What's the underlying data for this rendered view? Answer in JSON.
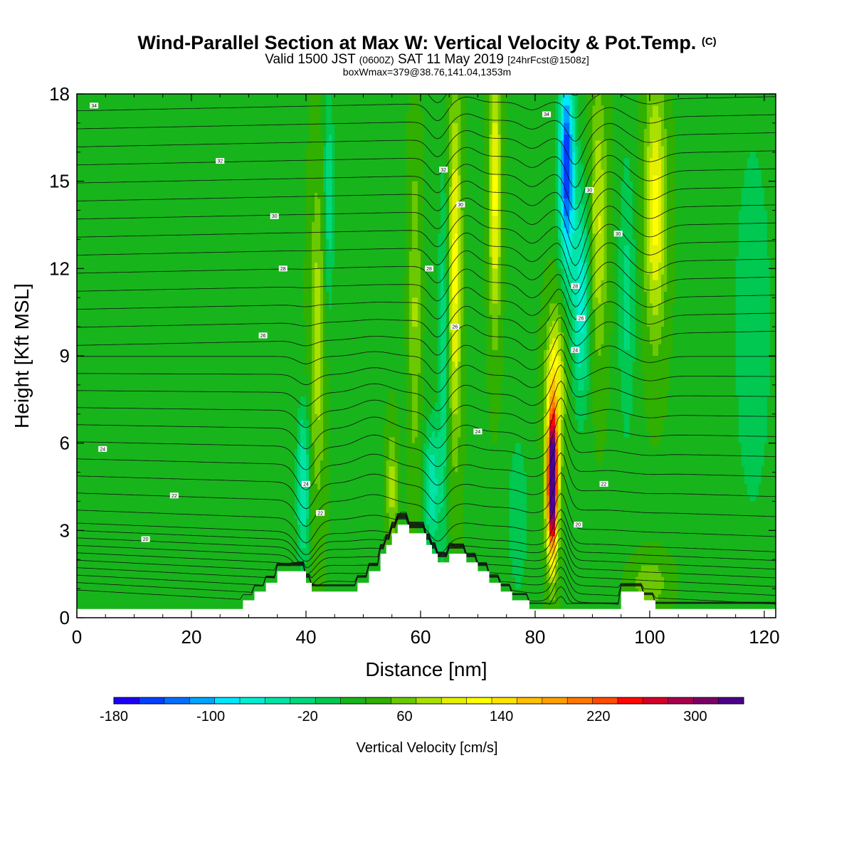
{
  "title": {
    "main": "Wind-Parallel Section at Max W: Vertical Velocity & Pot.Temp.",
    "copyright": "(C)",
    "valid_prefix": "Valid 1500 JST",
    "valid_utc": "(0600Z)",
    "valid_date": "SAT 11 May 2019",
    "forecast": "[24hrFcst@1508z]",
    "box_info": "boxWmax=379@38.76,141.04,1353m"
  },
  "chart_data": {
    "type": "heatmap",
    "xlabel": "Distance [nm]",
    "ylabel": "Height [Kft MSL]",
    "xlim": [
      0,
      122
    ],
    "ylim": [
      0,
      18
    ],
    "x_ticks": [
      0,
      20,
      40,
      60,
      80,
      100,
      120
    ],
    "y_ticks": [
      0,
      3,
      6,
      9,
      12,
      15,
      18
    ],
    "colorbar": {
      "title": "Vertical Velocity [cm/s]",
      "min": -180,
      "max": 340,
      "step": 20,
      "tick_labels": [
        "-180",
        "-100",
        "-20",
        "60",
        "140",
        "220",
        "300"
      ],
      "colors": [
        "#1d00f8",
        "#0040ff",
        "#0070ff",
        "#00a4ff",
        "#00e6ff",
        "#00eed2",
        "#00e4a8",
        "#00d87c",
        "#00c850",
        "#18b41c",
        "#30b000",
        "#6cc800",
        "#a8e000",
        "#e4f000",
        "#ffff00",
        "#ffe400",
        "#ffc000",
        "#ffa000",
        "#ff7800",
        "#ff4c00",
        "#ff0800",
        "#d20028",
        "#a8004c",
        "#7c0068",
        "#4c008c"
      ]
    },
    "terrain_kft": [
      [
        0,
        0.3
      ],
      [
        29,
        0.3
      ],
      [
        29,
        0.6
      ],
      [
        31,
        0.6
      ],
      [
        31,
        0.9
      ],
      [
        33,
        0.9
      ],
      [
        33,
        1.2
      ],
      [
        35,
        1.2
      ],
      [
        35,
        1.6
      ],
      [
        40,
        1.6
      ],
      [
        40,
        1.2
      ],
      [
        41,
        1.2
      ],
      [
        41,
        0.9
      ],
      [
        49,
        0.9
      ],
      [
        49,
        1.2
      ],
      [
        51,
        1.2
      ],
      [
        51,
        1.6
      ],
      [
        53,
        1.6
      ],
      [
        53,
        2.2
      ],
      [
        54,
        2.2
      ],
      [
        54,
        2.5
      ],
      [
        55,
        2.5
      ],
      [
        55,
        2.9
      ],
      [
        56,
        2.9
      ],
      [
        56,
        3.2
      ],
      [
        58,
        3.2
      ],
      [
        58,
        2.9
      ],
      [
        61,
        2.9
      ],
      [
        61,
        2.5
      ],
      [
        62,
        2.5
      ],
      [
        62,
        2.2
      ],
      [
        63,
        2.2
      ],
      [
        63,
        1.9
      ],
      [
        65,
        1.9
      ],
      [
        65,
        2.2
      ],
      [
        68,
        2.2
      ],
      [
        68,
        1.9
      ],
      [
        70,
        1.9
      ],
      [
        70,
        1.6
      ],
      [
        72,
        1.6
      ],
      [
        72,
        1.2
      ],
      [
        74,
        1.2
      ],
      [
        74,
        0.9
      ],
      [
        76,
        0.9
      ],
      [
        76,
        0.6
      ],
      [
        79,
        0.6
      ],
      [
        79,
        0.3
      ],
      [
        95,
        0.3
      ],
      [
        95,
        0.9
      ],
      [
        99,
        0.9
      ],
      [
        99,
        0.6
      ],
      [
        101,
        0.6
      ],
      [
        101,
        0.3
      ],
      [
        122,
        0.3
      ]
    ],
    "w_features": [
      {
        "x": 83,
        "z": 4.6,
        "sx": 0.9,
        "sz": 2.4,
        "w": 360
      },
      {
        "x": 83.5,
        "z": 8.0,
        "sx": 1.6,
        "sz": 2.5,
        "w": 90
      },
      {
        "x": 85.5,
        "z": 15.5,
        "sx": 1.3,
        "sz": 3.3,
        "w": -180
      },
      {
        "x": 88,
        "z": 11.0,
        "sx": 1.6,
        "sz": 3.6,
        "w": -90
      },
      {
        "x": 91,
        "z": 13.5,
        "sx": 1.5,
        "sz": 4.5,
        "w": 65
      },
      {
        "x": 101,
        "z": 14.0,
        "sx": 1.8,
        "sz": 4.2,
        "w": 90
      },
      {
        "x": 96,
        "z": 11.0,
        "sx": 1.5,
        "sz": 5.0,
        "w": -45
      },
      {
        "x": 66,
        "z": 12.0,
        "sx": 1.1,
        "sz": 6.0,
        "w": 90
      },
      {
        "x": 64,
        "z": 9.0,
        "sx": 0.9,
        "sz": 6.5,
        "w": -55
      },
      {
        "x": 73,
        "z": 14.5,
        "sx": 1.0,
        "sz": 4.5,
        "w": 90
      },
      {
        "x": 59,
        "z": 10.5,
        "sx": 1.0,
        "sz": 5.5,
        "w": 45
      },
      {
        "x": 62,
        "z": 4.5,
        "sx": 1.3,
        "sz": 2.2,
        "w": -75
      },
      {
        "x": 55,
        "z": 4.5,
        "sx": 0.9,
        "sz": 1.8,
        "w": 55
      },
      {
        "x": 39.5,
        "z": 4.6,
        "sx": 1.1,
        "sz": 2.6,
        "w": -80
      },
      {
        "x": 42,
        "z": 9.5,
        "sx": 1.3,
        "sz": 5.5,
        "w": 55
      },
      {
        "x": 44,
        "z": 14.5,
        "sx": 0.9,
        "sz": 4.0,
        "w": -55
      },
      {
        "x": 100,
        "z": 1.2,
        "sx": 3.0,
        "sz": 0.8,
        "w": 40
      },
      {
        "x": 118,
        "z": 10.0,
        "sx": 4.5,
        "sz": 9.0,
        "w": -28
      },
      {
        "x": 77,
        "z": 3.5,
        "sx": 2.0,
        "sz": 3.0,
        "w": -35
      },
      {
        "x": 10,
        "z": 9.0,
        "sx": 14.0,
        "sz": 9.0,
        "w": -6
      }
    ],
    "theta_labels": [
      {
        "x": 3,
        "z": 17.6,
        "text": "34"
      },
      {
        "x": 25,
        "z": 15.7,
        "text": "32"
      },
      {
        "x": 34.5,
        "z": 13.8,
        "text": "30"
      },
      {
        "x": 36,
        "z": 12.0,
        "text": "28"
      },
      {
        "x": 32.5,
        "z": 9.7,
        "text": "26"
      },
      {
        "x": 4.5,
        "z": 5.8,
        "text": "24"
      },
      {
        "x": 17,
        "z": 4.2,
        "text": "22"
      },
      {
        "x": 12,
        "z": 2.7,
        "text": "20"
      },
      {
        "x": 40,
        "z": 4.6,
        "text": "24"
      },
      {
        "x": 42.5,
        "z": 3.6,
        "text": "22"
      },
      {
        "x": 64,
        "z": 15.4,
        "text": "32"
      },
      {
        "x": 67,
        "z": 14.2,
        "text": "30"
      },
      {
        "x": 61.5,
        "z": 12.0,
        "text": "28"
      },
      {
        "x": 66,
        "z": 10.0,
        "text": "26"
      },
      {
        "x": 70,
        "z": 6.4,
        "text": "24"
      },
      {
        "x": 82,
        "z": 17.3,
        "text": "34"
      },
      {
        "x": 89.5,
        "z": 14.7,
        "text": "30"
      },
      {
        "x": 94.5,
        "z": 13.2,
        "text": "30"
      },
      {
        "x": 87,
        "z": 11.4,
        "text": "28"
      },
      {
        "x": 88,
        "z": 10.3,
        "text": "26"
      },
      {
        "x": 87,
        "z": 9.2,
        "text": "24"
      },
      {
        "x": 92,
        "z": 4.6,
        "text": "22"
      },
      {
        "x": 87.5,
        "z": 3.2,
        "text": "20"
      }
    ]
  }
}
